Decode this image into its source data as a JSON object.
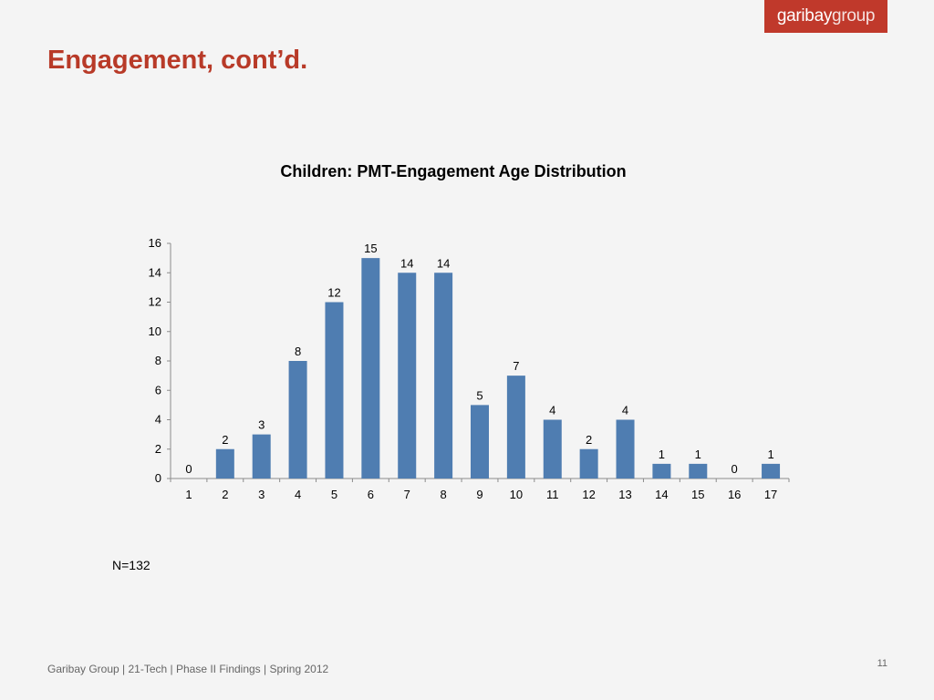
{
  "logo": {
    "part1": "garibay",
    "part2": "group"
  },
  "slide": {
    "title": "Engagement, cont’d.",
    "sample_size": "N=132",
    "footer": "Garibay Group | 21-Tech | Phase II Findings | Spring 2012",
    "page_number": "11"
  },
  "colors": {
    "bar": "#4f7db1",
    "title": "#b83a28",
    "logo_bg": "#c0392b"
  },
  "chart_data": {
    "type": "bar",
    "title": "Children: PMT-Engagement Age Distribution",
    "xlabel": "",
    "ylabel": "",
    "categories": [
      "1",
      "2",
      "3",
      "4",
      "5",
      "6",
      "7",
      "8",
      "9",
      "10",
      "11",
      "12",
      "13",
      "14",
      "15",
      "16",
      "17"
    ],
    "values": [
      0,
      2,
      3,
      8,
      12,
      15,
      14,
      14,
      5,
      7,
      4,
      2,
      4,
      1,
      1,
      0,
      1
    ],
    "ylim": [
      0,
      16
    ],
    "yticks": [
      0,
      2,
      4,
      6,
      8,
      10,
      12,
      14,
      16
    ],
    "grid": false,
    "legend": "none",
    "data_labels": true
  }
}
